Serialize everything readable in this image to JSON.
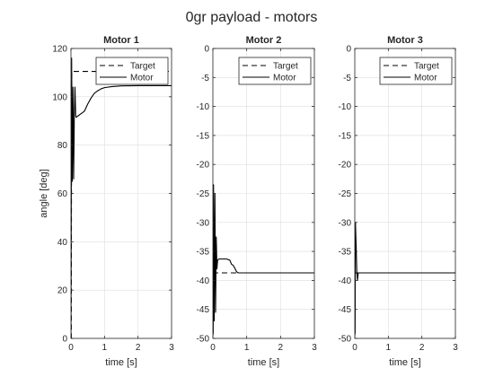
{
  "figure": {
    "title": "0gr payload - motors"
  },
  "chart_data": [
    {
      "type": "line",
      "title": "Motor 1",
      "xlabel": "time [s]",
      "ylabel": "angle [deg]",
      "xlim": [
        0,
        3
      ],
      "ylim": [
        0,
        120
      ],
      "xticks": [
        0,
        1,
        2,
        3
      ],
      "yticks": [
        0,
        20,
        40,
        60,
        80,
        100,
        120
      ],
      "grid": true,
      "legend": {
        "position": "top-right"
      },
      "series": [
        {
          "name": "Target",
          "style": "dashed",
          "color": "#000000",
          "x": [
            0.0,
            0.01,
            0.02,
            3.0
          ],
          "y": [
            0,
            0,
            110.5,
            110.5
          ]
        },
        {
          "name": "Motor",
          "style": "solid",
          "color": "#000000",
          "x": [
            0.0,
            0.02,
            0.04,
            0.06,
            0.08,
            0.1,
            0.12,
            0.14,
            0.16,
            0.2,
            0.3,
            0.4,
            0.5,
            0.6,
            0.7,
            0.8,
            0.9,
            1.0,
            1.2,
            1.5,
            2.0,
            3.0
          ],
          "y": [
            0,
            116,
            65,
            104,
            66,
            92,
            104,
            92,
            91.5,
            92,
            93,
            94,
            97,
            99.5,
            101.5,
            102.5,
            103.3,
            103.8,
            104.2,
            104.5,
            104.6,
            104.6
          ]
        }
      ]
    },
    {
      "type": "line",
      "title": "Motor 2",
      "xlabel": "time [s]",
      "ylabel": "",
      "xlim": [
        0,
        3
      ],
      "ylim": [
        -50,
        0
      ],
      "xticks": [
        0,
        1,
        2,
        3
      ],
      "yticks": [
        -50,
        -45,
        -40,
        -35,
        -30,
        -25,
        -20,
        -15,
        -10,
        -5,
        0
      ],
      "grid": true,
      "legend": {
        "position": "top-right"
      },
      "series": [
        {
          "name": "Target",
          "style": "dashed",
          "color": "#000000",
          "x": [
            0.0,
            0.02,
            3.0
          ],
          "y": [
            -38.7,
            -38.7,
            -38.7
          ]
        },
        {
          "name": "Motor",
          "style": "solid",
          "color": "#000000",
          "x": [
            0.0,
            0.01,
            0.02,
            0.04,
            0.06,
            0.08,
            0.1,
            0.12,
            0.14,
            0.18,
            0.22,
            0.3,
            0.4,
            0.5,
            0.55,
            0.6,
            0.65,
            0.7,
            0.75,
            0.8,
            1.0,
            1.5,
            2.0,
            3.0
          ],
          "y": [
            -49.5,
            -49,
            -23.5,
            -47,
            -25,
            -45.5,
            -32.5,
            -38,
            -36.5,
            -36.3,
            -36.3,
            -36.3,
            -36.3,
            -36.5,
            -37.2,
            -37.4,
            -37.9,
            -38.5,
            -38.7,
            -38.7,
            -38.7,
            -38.7,
            -38.7,
            -38.7
          ]
        }
      ]
    },
    {
      "type": "line",
      "title": "Motor 3",
      "xlabel": "time [s]",
      "ylabel": "",
      "xlim": [
        0,
        3
      ],
      "ylim": [
        -50,
        0
      ],
      "xticks": [
        0,
        1,
        2,
        3
      ],
      "yticks": [
        -50,
        -45,
        -40,
        -35,
        -30,
        -25,
        -20,
        -15,
        -10,
        -5,
        0
      ],
      "grid": true,
      "legend": {
        "position": "top-right"
      },
      "series": [
        {
          "name": "Target",
          "style": "dashed",
          "color": "#000000",
          "x": [
            0.0,
            0.02,
            3.0
          ],
          "y": [
            -38.7,
            -38.7,
            -38.7
          ]
        },
        {
          "name": "Motor",
          "style": "solid",
          "color": "#000000",
          "x": [
            0.0,
            0.01,
            0.02,
            0.04,
            0.06,
            0.08,
            0.1,
            0.12,
            0.14,
            0.2,
            0.5,
            1.0,
            2.0,
            3.0
          ],
          "y": [
            -49.5,
            -49,
            -30,
            -34,
            -38.5,
            -40,
            -38.8,
            -38.7,
            -38.7,
            -38.7,
            -38.7,
            -38.7,
            -38.7,
            -38.7
          ]
        }
      ]
    }
  ]
}
